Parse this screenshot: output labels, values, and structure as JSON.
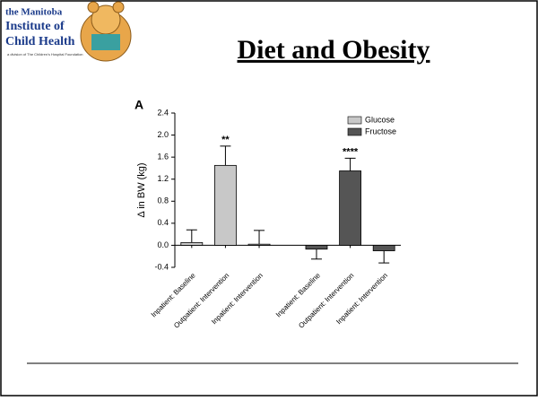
{
  "slide": {
    "title": "Diet and Obesity",
    "logo": {
      "lines": [
        "the Manitoba",
        "Institute of",
        "Child Health"
      ],
      "tagline": "a division of The Children's Hospital Foundation"
    }
  },
  "chart_data": {
    "type": "bar",
    "panel_label": "A",
    "y_label": "Δ in BW (kg)",
    "categories": [
      "Inpatient: Baseline",
      "Outpatient: Intervention",
      "Inpatient: Intervention",
      "Inpatient: Baseline",
      "Outpatient: Intervention",
      "Inpatient: Intervention"
    ],
    "series": [
      {
        "name": "Glucose",
        "color": "#c8c8c8",
        "values": [
          0.05,
          1.45,
          0.02,
          null,
          null,
          null
        ],
        "errors": [
          0.23,
          0.35,
          0.25,
          null,
          null,
          null
        ]
      },
      {
        "name": "Fructose",
        "color": "#555555",
        "values": [
          null,
          null,
          null,
          -0.07,
          1.35,
          -0.1
        ],
        "errors": [
          null,
          null,
          null,
          0.18,
          0.23,
          0.22
        ]
      }
    ],
    "annotations": [
      null,
      "**",
      null,
      null,
      "****",
      null
    ],
    "ylim": [
      -0.4,
      2.4
    ],
    "yticks": [
      -0.4,
      {
        "value": 0,
        "label": "0.0"
      },
      0.4,
      0.8,
      1.2,
      1.6,
      {
        "value": 2,
        "label": "2.0"
      },
      2.4
    ],
    "legend": "top-right"
  }
}
